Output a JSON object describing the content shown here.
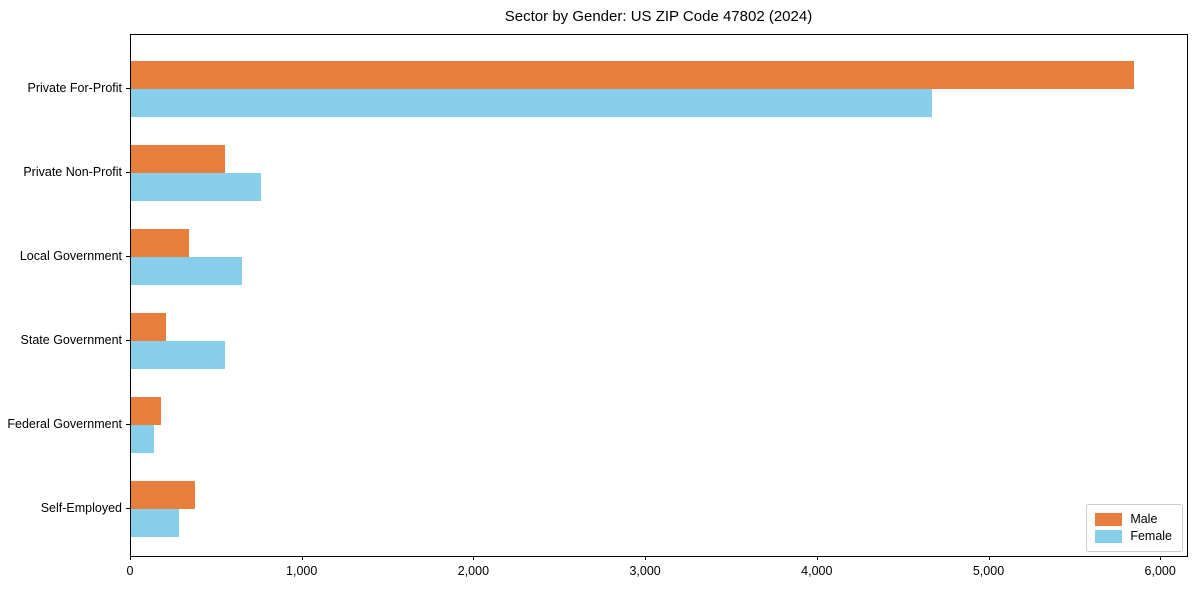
{
  "chart_data": {
    "type": "bar",
    "orientation": "horizontal",
    "title": "Sector by Gender: US ZIP Code 47802 (2024)",
    "categories": [
      "Private For-Profit",
      "Private Non-Profit",
      "Local Government",
      "State Government",
      "Federal Government",
      "Self-Employed"
    ],
    "series": [
      {
        "name": "Male",
        "color": "#e87e3d",
        "values": [
          5840,
          545,
          335,
          205,
          175,
          370
        ]
      },
      {
        "name": "Female",
        "color": "#87ceeb",
        "values": [
          4665,
          755,
          645,
          545,
          135,
          280
        ]
      }
    ],
    "xlabel": "",
    "ylabel": "",
    "xlim": [
      0,
      6150
    ],
    "x_ticks": [
      0,
      1000,
      2000,
      3000,
      4000,
      5000,
      6000
    ],
    "x_tick_labels": [
      "0",
      "1,000",
      "2,000",
      "3,000",
      "4,000",
      "5,000",
      "6,000"
    ],
    "grid": false,
    "legend": {
      "position": "lower right",
      "entries": [
        "Male",
        "Female"
      ]
    }
  }
}
